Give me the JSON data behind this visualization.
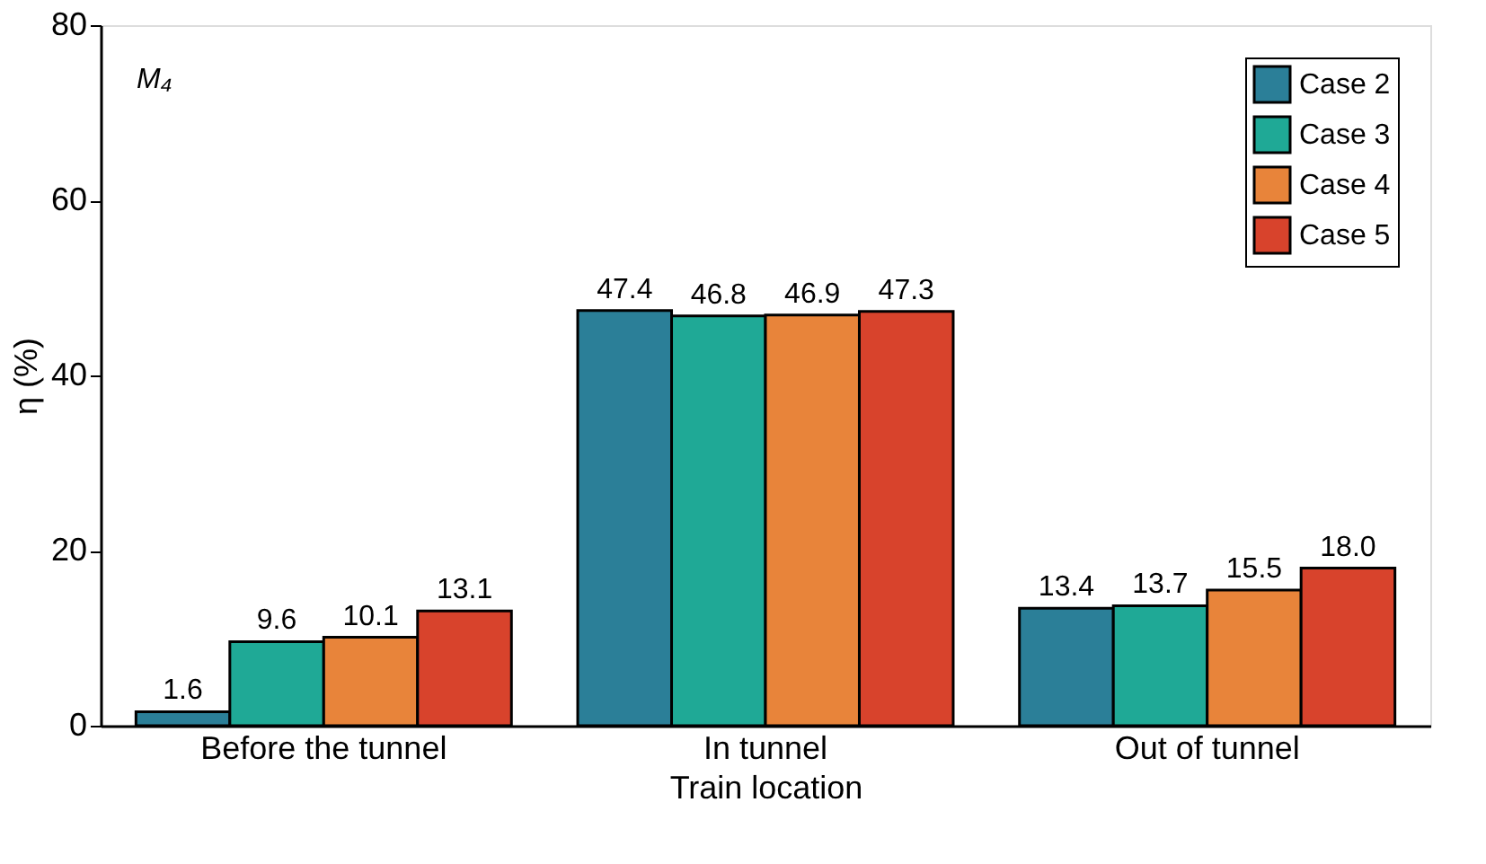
{
  "chart_data": {
    "type": "bar",
    "xlabel": "Train location",
    "ylabel": "η (%)",
    "annotations": [
      "M₄"
    ],
    "categories": [
      "Before the tunnel",
      "In tunnel",
      "Out of tunnel"
    ],
    "series": [
      {
        "name": "Case 2",
        "color": "#2b7f98",
        "values": [
          1.6,
          47.4,
          13.4
        ],
        "value_labels": [
          "1.6",
          "47.4",
          "13.4"
        ]
      },
      {
        "name": "Case 3",
        "color": "#1fa996",
        "values": [
          9.6,
          46.8,
          13.7
        ],
        "value_labels": [
          "9.6",
          "46.8",
          "13.7"
        ]
      },
      {
        "name": "Case 4",
        "color": "#e8843a",
        "values": [
          10.1,
          46.9,
          15.5
        ],
        "value_labels": [
          "10.1",
          "46.9",
          "15.5"
        ]
      },
      {
        "name": "Case 5",
        "color": "#d8432c",
        "values": [
          13.1,
          47.3,
          18.0
        ],
        "value_labels": [
          "13.1",
          "47.3",
          "18.0"
        ]
      }
    ],
    "ylim": [
      0,
      80
    ],
    "yticks": [
      0,
      20,
      40,
      60,
      80
    ],
    "grid": false,
    "legend": "top right"
  }
}
